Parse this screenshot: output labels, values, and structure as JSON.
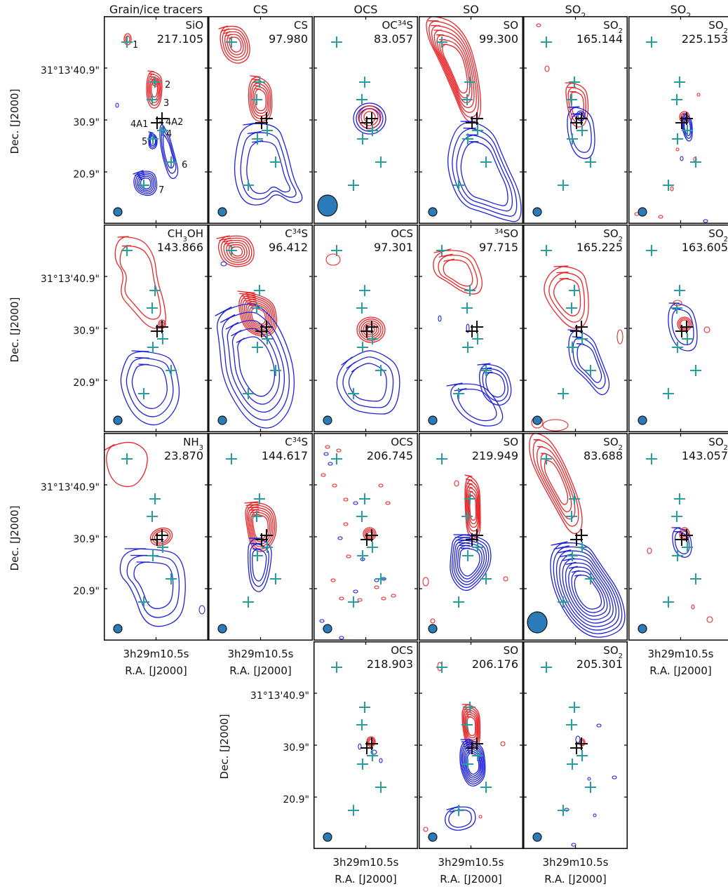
{
  "column_headers": [
    "Grain/ice tracers",
    "CS",
    "OCS",
    "SO",
    "SO2",
    "SO2"
  ],
  "axes": {
    "dec_label": "Dec. [J2000]",
    "ra_label": "R.A. [J2000]",
    "ra_tick": "3h29m10.5s",
    "dec_ticks": [
      "31°13'40.9\"",
      "30.9\"",
      "20.9\""
    ]
  },
  "panels": [
    [
      {
        "molecule": "SiO",
        "freq": "217.105"
      },
      {
        "molecule": "CS",
        "freq": "97.980"
      },
      {
        "molecule": "OC34S",
        "freq": "83.057"
      },
      {
        "molecule": "SO",
        "freq": "99.300"
      },
      {
        "molecule": "SO2",
        "freq": "165.144"
      },
      {
        "molecule": "SO2",
        "freq": "225.153"
      }
    ],
    [
      {
        "molecule": "CH3OH",
        "freq": "143.866"
      },
      {
        "molecule": "C34S",
        "freq": "96.412"
      },
      {
        "molecule": "OCS",
        "freq": "97.301"
      },
      {
        "molecule": "34SO",
        "freq": "97.715"
      },
      {
        "molecule": "SO2",
        "freq": "165.225"
      },
      {
        "molecule": "SO2",
        "freq": "163.605"
      }
    ],
    [
      {
        "molecule": "NH3",
        "freq": "23.870"
      },
      {
        "molecule": "C34S",
        "freq": "144.617"
      },
      {
        "molecule": "OCS",
        "freq": "206.745"
      },
      {
        "molecule": "SO",
        "freq": "219.949"
      },
      {
        "molecule": "SO2",
        "freq": "83.688"
      },
      {
        "molecule": "SO2",
        "freq": "143.057"
      }
    ],
    [
      null,
      null,
      {
        "molecule": "OCS",
        "freq": "218.903"
      },
      {
        "molecule": "SO",
        "freq": "206.176"
      },
      {
        "molecule": "SO2",
        "freq": "205.301"
      },
      null
    ]
  ],
  "source_labels": [
    "1",
    "2",
    "3",
    "4A1",
    "4A2",
    "4",
    "5",
    "6",
    "7"
  ],
  "colors": {
    "redshifted": "#e8262a",
    "blueshifted": "#1f22d8",
    "source_marker": "#2a9d9f",
    "protostar_marker": "#111111",
    "beam": "#2b7bb9"
  }
}
